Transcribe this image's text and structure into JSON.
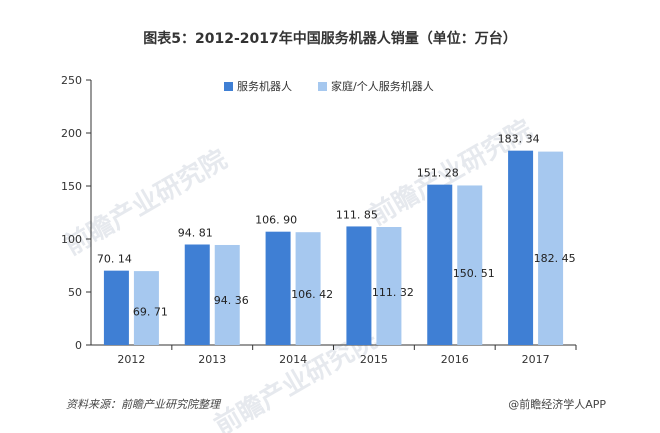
{
  "chart_data": {
    "type": "bar",
    "title": "图表5：2012-2017年中国服务机器人销量（单位：万台）",
    "categories": [
      "2012",
      "2013",
      "2014",
      "2015",
      "2016",
      "2017"
    ],
    "series": [
      {
        "name": "服务机器人",
        "values": [
          70.14,
          94.81,
          106.9,
          111.85,
          151.28,
          183.34
        ],
        "color": "#3f7fd4"
      },
      {
        "name": "家庭/个人服务机器人",
        "values": [
          69.71,
          94.36,
          106.42,
          111.32,
          150.51,
          182.45
        ],
        "color": "#a6c8ef"
      }
    ],
    "value_labels": [
      [
        "70. 14",
        "94. 81",
        "106. 90",
        "111. 85",
        "151. 28",
        "183. 34"
      ],
      [
        "69. 71",
        "94. 36",
        "106. 42",
        "111. 32",
        "150. 51",
        "182. 45"
      ]
    ],
    "ylim": [
      0,
      250
    ],
    "yticks": [
      0,
      50,
      100,
      150,
      200,
      250
    ],
    "xlabel": "",
    "ylabel": "",
    "legend_position": "top-right",
    "grid": false
  },
  "source": "资料来源：前瞻产业研究院整理",
  "credit": "@前瞻经济学人APP",
  "watermark": "前瞻产业研究院"
}
